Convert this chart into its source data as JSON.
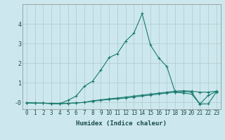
{
  "title": "",
  "xlabel": "Humidex (Indice chaleur)",
  "ylabel": "",
  "background_color": "#cce8ee",
  "grid_color": "#b0c8cc",
  "line_color": "#1a7a6e",
  "x_values": [
    0,
    1,
    2,
    3,
    4,
    5,
    6,
    7,
    8,
    9,
    10,
    11,
    12,
    13,
    14,
    15,
    16,
    17,
    18,
    19,
    20,
    21,
    22,
    23
  ],
  "line1_y": [
    -0.02,
    -0.04,
    -0.04,
    -0.06,
    -0.07,
    -0.05,
    -0.03,
    0.0,
    0.08,
    0.13,
    0.18,
    0.22,
    0.27,
    0.32,
    0.37,
    0.42,
    0.47,
    0.52,
    0.57,
    0.59,
    0.57,
    0.52,
    0.52,
    0.57
  ],
  "line2_y": [
    -0.02,
    -0.04,
    -0.04,
    -0.06,
    -0.07,
    -0.05,
    -0.03,
    0.0,
    0.06,
    0.1,
    0.15,
    0.18,
    0.22,
    0.27,
    0.32,
    0.37,
    0.42,
    0.47,
    0.52,
    0.55,
    0.52,
    -0.08,
    -0.08,
    0.52
  ],
  "line3_y": [
    -0.02,
    -0.04,
    -0.04,
    -0.06,
    -0.07,
    0.1,
    0.32,
    0.82,
    1.08,
    1.65,
    2.28,
    2.48,
    3.12,
    3.52,
    4.52,
    2.92,
    2.27,
    1.82,
    0.52,
    0.47,
    0.42,
    -0.09,
    0.35,
    0.55
  ],
  "ylim": [
    -0.35,
    5.0
  ],
  "xlim": [
    -0.5,
    23.5
  ],
  "yticks": [
    0,
    1,
    2,
    3,
    4
  ],
  "ytick_labels": [
    "-0",
    "1",
    "2",
    "3",
    "4"
  ],
  "xtick_labels": [
    "0",
    "1",
    "2",
    "3",
    "4",
    "5",
    "6",
    "7",
    "8",
    "9",
    "10",
    "11",
    "12",
    "13",
    "14",
    "15",
    "16",
    "17",
    "18",
    "19",
    "20",
    "21",
    "22",
    "23"
  ],
  "marker": "+",
  "linewidth": 0.8,
  "marker_size": 3.5,
  "marker_edge_width": 0.8,
  "xlabel_fontsize": 6.5,
  "tick_fontsize": 5.5
}
